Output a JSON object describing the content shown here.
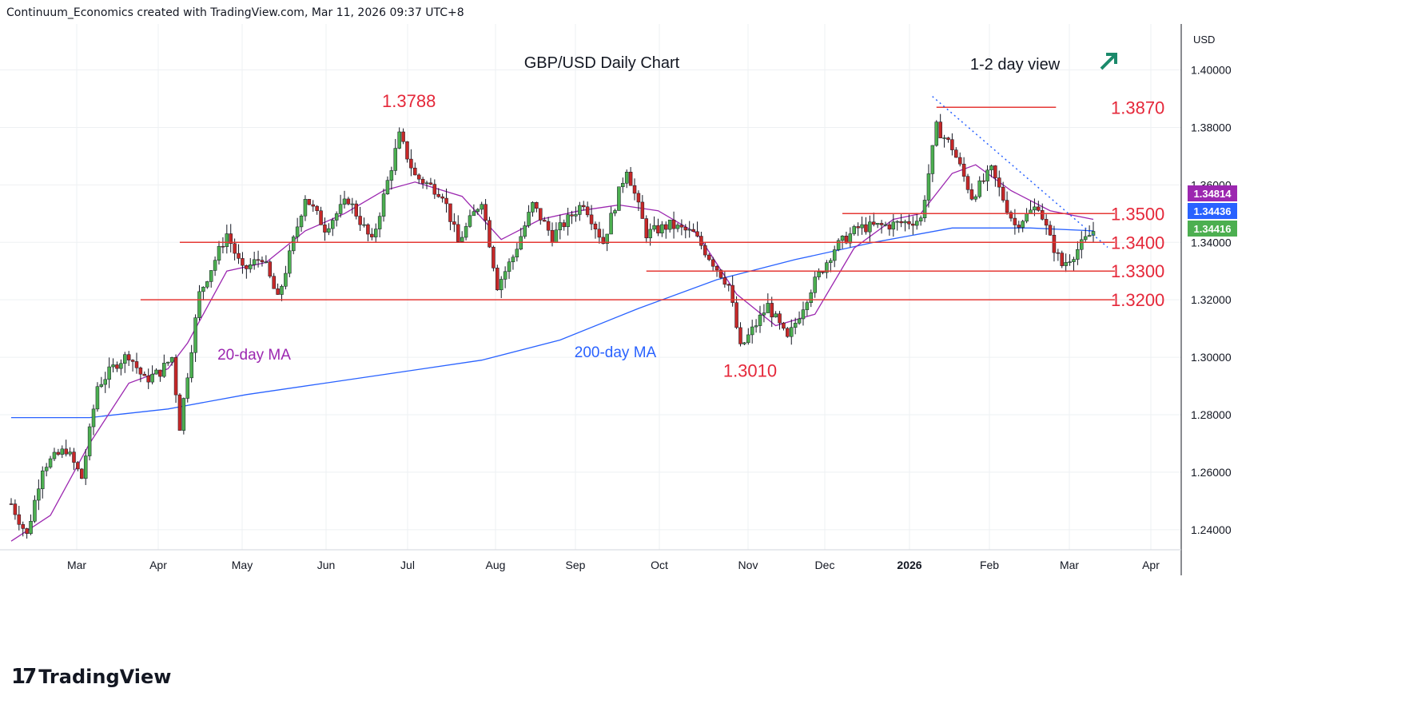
{
  "header": {
    "attribution": "Continuum_Economics created with TradingView.com, Mar 11, 2026 09:37 UTC+8"
  },
  "brand": {
    "name": "TradingView",
    "logo_icon": "tradingview-logo-icon"
  },
  "colors": {
    "up": "#4caf50",
    "down": "#c62828",
    "wick": "#131722",
    "level": "#e53935",
    "label_red": "#e5283a",
    "ma20": "#9c27b0",
    "ma200": "#2962ff",
    "trend": "#2962ff",
    "arrow": "#1b8a6b",
    "grid": "#eef0f3"
  },
  "chart_data": {
    "type": "candlestick",
    "title": "GBP/USD Daily Chart",
    "view_note": "1-2 day view",
    "view_icon": "up-right-arrow-icon",
    "currency": "USD",
    "ylim": [
      1.233,
      1.416
    ],
    "y_ticks": [
      "1.24000",
      "1.26000",
      "1.28000",
      "1.30000",
      "1.32000",
      "1.34000",
      "1.36000",
      "1.38000",
      "1.40000"
    ],
    "x_ticks": [
      "Mar",
      "Apr",
      "May",
      "Jun",
      "Jul",
      "Aug",
      "Sep",
      "Oct",
      "Nov",
      "Dec",
      "2026",
      "Feb",
      "Mar",
      "Apr"
    ],
    "price_tags": [
      {
        "label": "1.34814",
        "value": 1.34814,
        "color": "#9c27b0"
      },
      {
        "label": "1.34436",
        "value": 1.34436,
        "color": "#2962ff"
      },
      {
        "label": "1.34416",
        "value": 1.34416,
        "color": "#4caf50"
      }
    ],
    "levels": [
      {
        "label": "1.3870",
        "value": 1.387,
        "from_day": 236,
        "to_day": 262
      },
      {
        "label": "1.3500",
        "value": 1.35,
        "from_day": 212,
        "to_day": 277
      },
      {
        "label": "1.3400",
        "value": 1.34,
        "from_day": 43,
        "to_day": 277
      },
      {
        "label": "1.3300",
        "value": 1.33,
        "from_day": 162,
        "to_day": 277
      },
      {
        "label": "1.3200",
        "value": 1.32,
        "from_day": 33,
        "to_day": 277
      }
    ],
    "annotations": [
      {
        "label": "1.3788",
        "kind": "high",
        "day": 99,
        "value": 1.3788
      },
      {
        "label": "1.3010",
        "kind": "low",
        "day": 186,
        "value": 1.301
      }
    ],
    "series_labels": [
      {
        "name": "20-day MA",
        "color": "#9c27b0"
      },
      {
        "name": "200-day MA",
        "color": "#2962ff"
      }
    ],
    "trendline": {
      "from": [
        237,
        1.388
      ],
      "to": [
        276,
        1.3405
      ]
    },
    "anchors": [
      [
        0,
        1.249
      ],
      [
        4,
        1.238
      ],
      [
        8,
        1.262
      ],
      [
        14,
        1.268
      ],
      [
        18,
        1.258
      ],
      [
        22,
        1.29
      ],
      [
        27,
        1.298
      ],
      [
        30,
        1.301
      ],
      [
        34,
        1.292
      ],
      [
        38,
        1.295
      ],
      [
        41,
        1.3
      ],
      [
        43,
        1.276
      ],
      [
        48,
        1.322
      ],
      [
        55,
        1.343
      ],
      [
        59,
        1.33
      ],
      [
        64,
        1.335
      ],
      [
        68,
        1.32
      ],
      [
        75,
        1.356
      ],
      [
        80,
        1.345
      ],
      [
        86,
        1.355
      ],
      [
        92,
        1.34
      ],
      [
        99,
        1.377
      ],
      [
        103,
        1.363
      ],
      [
        110,
        1.357
      ],
      [
        114,
        1.34
      ],
      [
        120,
        1.355
      ],
      [
        124,
        1.325
      ],
      [
        128,
        1.335
      ],
      [
        133,
        1.353
      ],
      [
        138,
        1.342
      ],
      [
        146,
        1.354
      ],
      [
        151,
        1.34
      ],
      [
        157,
        1.366
      ],
      [
        162,
        1.343
      ],
      [
        168,
        1.346
      ],
      [
        174,
        1.343
      ],
      [
        183,
        1.325
      ],
      [
        186,
        1.303
      ],
      [
        193,
        1.318
      ],
      [
        198,
        1.306
      ],
      [
        204,
        1.324
      ],
      [
        210,
        1.338
      ],
      [
        216,
        1.345
      ],
      [
        224,
        1.346
      ],
      [
        232,
        1.348
      ],
      [
        236,
        1.38
      ],
      [
        240,
        1.373
      ],
      [
        245,
        1.356
      ],
      [
        250,
        1.365
      ],
      [
        254,
        1.352
      ],
      [
        256,
        1.346
      ],
      [
        262,
        1.353
      ],
      [
        265,
        1.341
      ],
      [
        268,
        1.332
      ],
      [
        271,
        1.336
      ],
      [
        276,
        1.344
      ]
    ],
    "ma20": [
      [
        0,
        1.236
      ],
      [
        10,
        1.245
      ],
      [
        20,
        1.27
      ],
      [
        30,
        1.291
      ],
      [
        40,
        1.296
      ],
      [
        45,
        1.305
      ],
      [
        55,
        1.33
      ],
      [
        65,
        1.333
      ],
      [
        75,
        1.344
      ],
      [
        85,
        1.35
      ],
      [
        95,
        1.358
      ],
      [
        103,
        1.361
      ],
      [
        115,
        1.356
      ],
      [
        125,
        1.341
      ],
      [
        135,
        1.348
      ],
      [
        145,
        1.351
      ],
      [
        155,
        1.353
      ],
      [
        165,
        1.351
      ],
      [
        175,
        1.343
      ],
      [
        185,
        1.322
      ],
      [
        195,
        1.311
      ],
      [
        205,
        1.315
      ],
      [
        215,
        1.338
      ],
      [
        225,
        1.348
      ],
      [
        232,
        1.35
      ],
      [
        240,
        1.364
      ],
      [
        246,
        1.367
      ],
      [
        255,
        1.358
      ],
      [
        265,
        1.351
      ],
      [
        276,
        1.348
      ]
    ],
    "ma200": [
      [
        0,
        1.279
      ],
      [
        20,
        1.279
      ],
      [
        40,
        1.282
      ],
      [
        60,
        1.287
      ],
      [
        80,
        1.291
      ],
      [
        100,
        1.295
      ],
      [
        120,
        1.299
      ],
      [
        140,
        1.306
      ],
      [
        160,
        1.317
      ],
      [
        180,
        1.327
      ],
      [
        200,
        1.334
      ],
      [
        220,
        1.34
      ],
      [
        240,
        1.345
      ],
      [
        260,
        1.345
      ],
      [
        276,
        1.344
      ]
    ]
  }
}
